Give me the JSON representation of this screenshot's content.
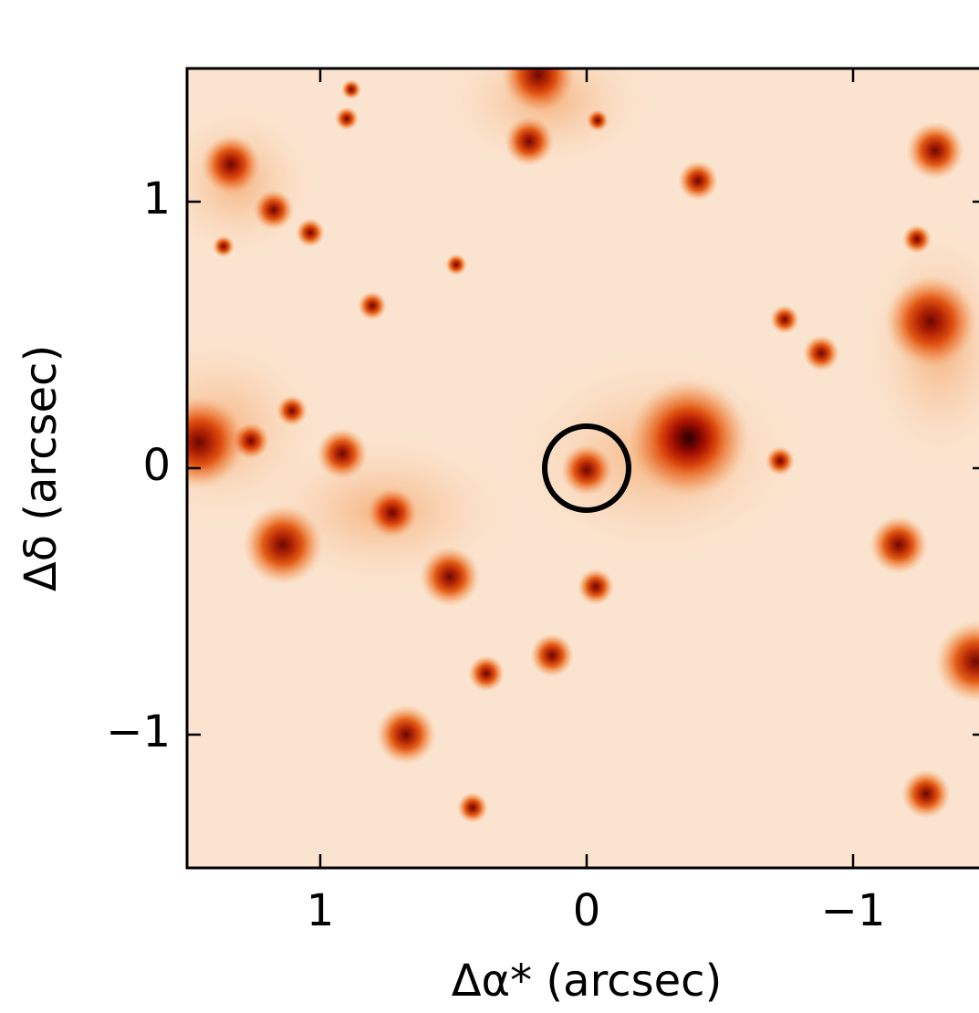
{
  "chart_data": {
    "type": "image",
    "x_label": "Δα* (arcsec)",
    "y_label": "Δδ (arcsec)",
    "xlim": [
      1.5,
      -1.5
    ],
    "ylim": [
      -1.5,
      1.5
    ],
    "xticks": [
      1,
      0,
      {
        "value": -1,
        "label": "−1"
      }
    ],
    "yticks": [
      {
        "value": -1,
        "label": "−1"
      },
      0,
      1
    ],
    "marker": {
      "x": 0,
      "y": 0
    }
  }
}
